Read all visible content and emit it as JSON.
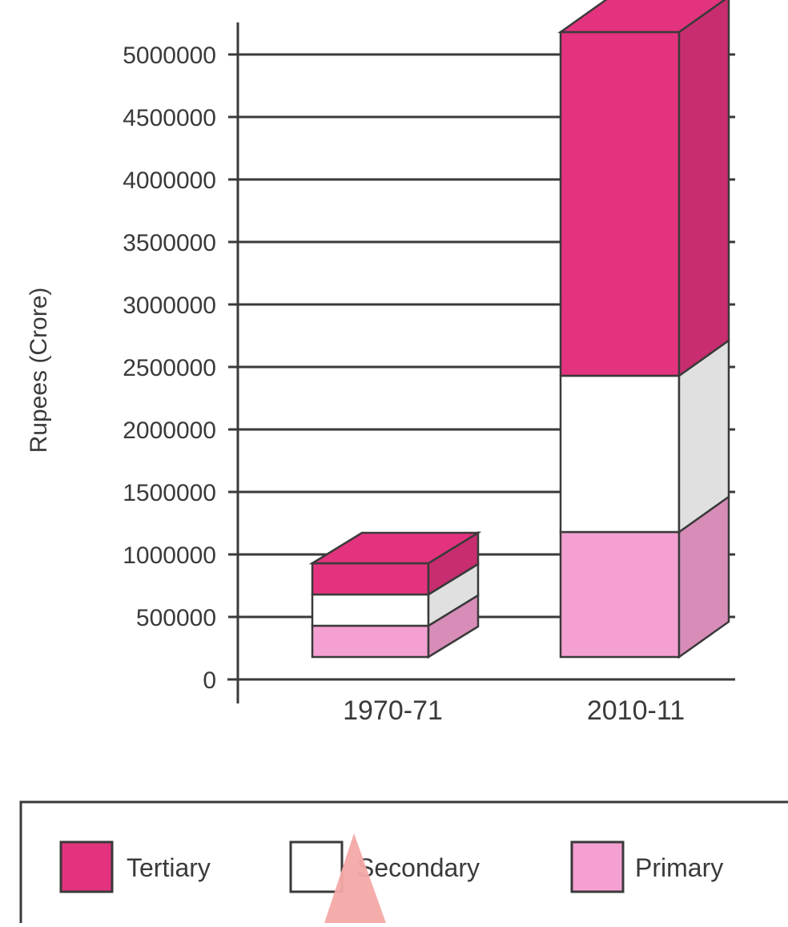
{
  "chart_data": {
    "type": "bar",
    "stacked": true,
    "style": "3d",
    "title": "",
    "xlabel": "",
    "ylabel": "Rupees (Crore)",
    "ylim": [
      0,
      5000000
    ],
    "yticks": [
      "5000000",
      "4500000",
      "4000000",
      "3500000",
      "3000000",
      "2500000",
      "2000000",
      "1500000",
      "1000000",
      "500000",
      "0"
    ],
    "categories": [
      "1970-71",
      "2010-11"
    ],
    "series": [
      {
        "name": "Primary",
        "values": [
          250000,
          1000000
        ]
      },
      {
        "name": "Secondary",
        "values": [
          250000,
          1250000
        ]
      },
      {
        "name": "Tertiary",
        "values": [
          250000,
          2750000
        ]
      }
    ],
    "grid": true,
    "legend_position": "bottom"
  },
  "legend": {
    "items": [
      {
        "label": "Tertiary",
        "color": "#e3337e"
      },
      {
        "label": "Secondary",
        "color": "#ffffff"
      },
      {
        "label": "Primary",
        "color": "#f5a0d2"
      }
    ]
  },
  "colors": {
    "tertiary": "#e3337e",
    "secondary": "#ffffff",
    "primary": "#f5a0d2",
    "grid": "#3a3a3a",
    "marker": "#f4a9a6"
  }
}
